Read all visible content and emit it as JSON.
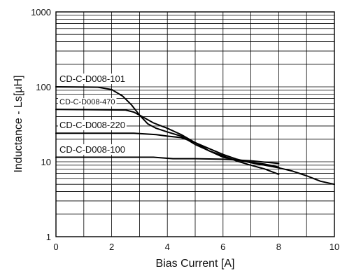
{
  "chart_data": {
    "type": "line",
    "title": "",
    "xlabel": "Bias Current [A]",
    "ylabel": "Inductance - Ls[µH]",
    "xlim": [
      0,
      10
    ],
    "ylim": [
      1,
      1000
    ],
    "yscale": "log",
    "grid": true,
    "x_ticks": [
      "0",
      "2",
      "4",
      "6",
      "8",
      "10"
    ],
    "y_ticks": [
      "1",
      "10",
      "100",
      "1000"
    ],
    "series": [
      {
        "name": "CD-C-D008-101",
        "x": [
          0,
          1.5,
          2.0,
          2.4,
          2.7,
          3.0,
          3.3,
          3.6,
          4.0,
          4.5,
          5.0,
          5.5,
          6.0,
          6.5,
          7.0,
          7.5,
          8.0
        ],
        "y": [
          100,
          99,
          92,
          75,
          58,
          42,
          32,
          28,
          25,
          22,
          17,
          14,
          12,
          10.2,
          9.0,
          8.0,
          6.8
        ]
      },
      {
        "name": "CD-C-D008-470",
        "x": [
          0,
          2.5,
          2.8,
          3.1,
          3.5,
          4.0,
          4.5,
          5.0,
          5.5,
          6.0,
          6.5,
          7.0,
          7.5,
          8.0,
          8.5,
          9.0,
          9.5,
          10.0
        ],
        "y": [
          50,
          49,
          46,
          40,
          33,
          28,
          23,
          18,
          15,
          12.5,
          10.8,
          9.7,
          9.0,
          8.3,
          7.5,
          6.5,
          5.5,
          5.0
        ]
      },
      {
        "name": "CD-C-D008-220",
        "x": [
          0,
          2.8,
          3.2,
          3.6,
          4.0,
          4.5,
          5.0,
          5.5,
          6.0,
          6.5,
          7.0,
          7.5,
          8.0
        ],
        "y": [
          24,
          24,
          23.5,
          23,
          22,
          21,
          18,
          14,
          11.5,
          10.5,
          9.8,
          9.3,
          8.5
        ]
      },
      {
        "name": "CD-C-D008-100",
        "x": [
          0,
          3.5,
          4.2,
          5.0,
          6.0,
          7.0,
          8.0
        ],
        "y": [
          11.5,
          11.5,
          11.0,
          11.0,
          10.8,
          10.3,
          9.5
        ]
      }
    ]
  }
}
